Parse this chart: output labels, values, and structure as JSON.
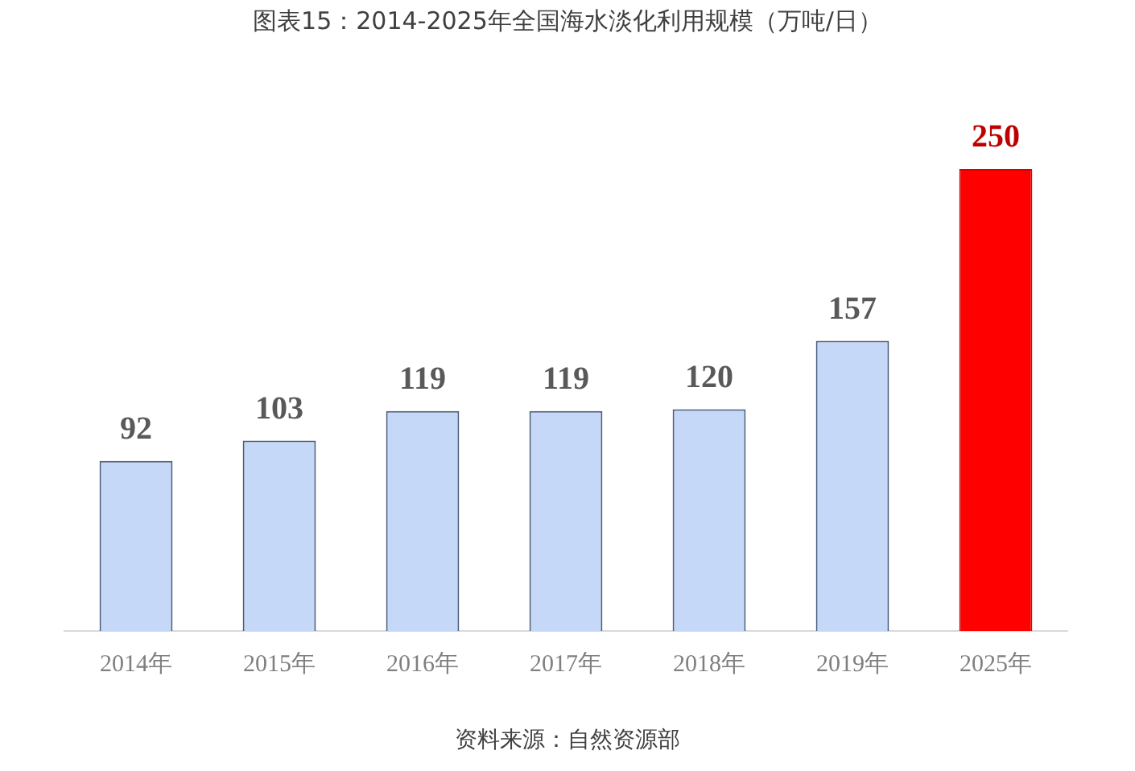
{
  "chart_data": {
    "type": "bar",
    "title": "图表15：2014-2025年全国海水淡化利用规模（万吨/日）",
    "categories": [
      "2014年",
      "2015年",
      "2016年",
      "2017年",
      "2018年",
      "2019年",
      "2025年"
    ],
    "values": [
      92,
      103,
      119,
      119,
      120,
      157,
      250
    ],
    "colors": [
      "#c5d8f8",
      "#c5d8f8",
      "#c5d8f8",
      "#c5d8f8",
      "#c5d8f8",
      "#c5d8f8",
      "#ff0000"
    ],
    "ylim": [
      0,
      250
    ],
    "tick_labels": "x",
    "data_labels": true,
    "annotations": [
      "资料来源：自然资源部"
    ]
  }
}
